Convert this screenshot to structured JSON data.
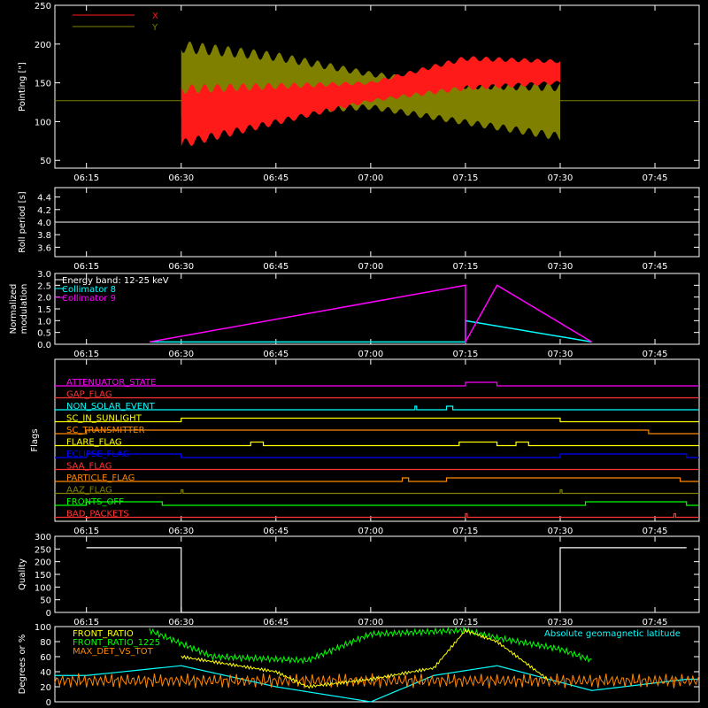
{
  "chart_data": [
    {
      "type": "area",
      "ylabel": "Pointing [\"]",
      "ylim": [
        40,
        250
      ],
      "yticks": [
        50,
        100,
        150,
        200,
        250
      ],
      "x_ticks": [
        "06:15",
        "06:30",
        "06:45",
        "07:00",
        "07:15",
        "07:30",
        "07:45"
      ],
      "baseline": 127,
      "legend": [
        {
          "name": "X",
          "color": "#ff1a1a"
        },
        {
          "name": "Y",
          "color": "#808000"
        }
      ],
      "series": [
        {
          "name": "X",
          "color": "#ff1a1a",
          "x": [
            "06:30",
            "06:45",
            "07:00",
            "07:15",
            "07:30"
          ],
          "low": [
            65,
            95,
            125,
            140,
            148
          ],
          "high": [
            148,
            150,
            152,
            185,
            180
          ]
        },
        {
          "name": "Y",
          "color": "#808000",
          "x": [
            "06:30",
            "06:45",
            "07:00",
            "07:15",
            "07:30"
          ],
          "low": [
            95,
            108,
            115,
            95,
            75
          ],
          "high": [
            205,
            190,
            165,
            150,
            150
          ]
        }
      ]
    },
    {
      "type": "line",
      "ylabel": "Roll period [s]",
      "ylim": [
        3.45,
        4.55
      ],
      "yticks": [
        "3.6",
        "3.8",
        "4.0",
        "4.2",
        "4.4"
      ],
      "x_ticks": [
        "06:15",
        "06:30",
        "06:45",
        "07:00",
        "07:15",
        "07:30",
        "07:45"
      ],
      "series": [
        {
          "name": "",
          "color": "#ffffff",
          "value": 4.0
        }
      ]
    },
    {
      "type": "line",
      "ylabel": "Normalized modulation",
      "ylim": [
        0,
        3.0
      ],
      "yticks": [
        "0.0",
        "0.5",
        "1.0",
        "1.5",
        "2.0",
        "2.5",
        "3.0"
      ],
      "x_ticks": [
        "06:15",
        "06:30",
        "06:45",
        "07:00",
        "07:15",
        "07:30",
        "07:45"
      ],
      "legend": [
        {
          "name": "Energy band: 12-25 keV",
          "color": "#ffffff"
        },
        {
          "name": "Collimator 8",
          "color": "#00ffff"
        },
        {
          "name": "Collimator 9",
          "color": "#ff00ff"
        }
      ],
      "series": [
        {
          "name": "Collimator 8",
          "color": "#00ffff",
          "x": [
            "06:25",
            "07:15",
            "07:15",
            "07:35"
          ],
          "y": [
            0.1,
            0.1,
            1.0,
            0.1
          ]
        },
        {
          "name": "Collimator 9",
          "color": "#ff00ff",
          "x": [
            "06:25",
            "07:15",
            "07:15",
            "07:20",
            "07:35"
          ],
          "y": [
            0.1,
            2.5,
            0.1,
            2.5,
            0.1
          ]
        }
      ]
    },
    {
      "type": "table",
      "ylabel": "Flags",
      "x_ticks": [
        "06:15",
        "06:30",
        "06:45",
        "07:00",
        "07:15",
        "07:30",
        "07:45"
      ],
      "flags": [
        {
          "name": "ATTENUATOR_STATE",
          "color": "#ff00ff",
          "on": [
            [
              "07:15",
              "07:20"
            ]
          ]
        },
        {
          "name": "GAP_FLAG",
          "color": "#ff3333",
          "on": []
        },
        {
          "name": "NON_SOLAR_EVENT",
          "color": "#00ffff",
          "on": [
            [
              "07:07",
              "07:07"
            ],
            [
              "07:12",
              "07:13"
            ]
          ]
        },
        {
          "name": "SC_IN_SUNLIGHT",
          "color": "#ffff00",
          "on": [
            [
              "06:30",
              "07:30"
            ]
          ]
        },
        {
          "name": "SC_TRANSMITTER",
          "color": "#ff8800",
          "on": [
            [
              "06:15",
              "07:44"
            ]
          ]
        },
        {
          "name": "FLARE_FLAG",
          "color": "#ffff00",
          "on": [
            [
              "06:41",
              "06:43"
            ],
            [
              "07:14",
              "07:20"
            ],
            [
              "07:23",
              "07:25"
            ]
          ]
        },
        {
          "name": "ECLIPSE_FLAG",
          "color": "#0000ff",
          "on": [
            [
              "06:15",
              "06:30"
            ],
            [
              "07:30",
              "07:50"
            ]
          ]
        },
        {
          "name": "SAA_FLAG",
          "color": "#ff3333",
          "on": []
        },
        {
          "name": "PARTICLE_FLAG",
          "color": "#ff8800",
          "on": [
            [
              "07:05",
              "07:06"
            ],
            [
              "07:12",
              "07:49"
            ]
          ]
        },
        {
          "name": "AAZ_FLAG",
          "color": "#808000",
          "on": [
            [
              "06:30",
              "06:30"
            ],
            [
              "07:30",
              "07:30"
            ]
          ]
        },
        {
          "name": "FRONTS_OFF",
          "color": "#00ff00",
          "on": [
            [
              "06:15",
              "06:27"
            ],
            [
              "07:34",
              "07:50"
            ]
          ]
        },
        {
          "name": "BAD_PACKETS",
          "color": "#ff3333",
          "on": [
            [
              "07:15",
              "07:15"
            ],
            [
              "07:48",
              "07:48"
            ]
          ]
        }
      ]
    },
    {
      "type": "line",
      "ylabel": "Quality",
      "ylim": [
        0,
        300
      ],
      "yticks": [
        "0",
        "50",
        "100",
        "150",
        "200",
        "250",
        "300"
      ],
      "x_ticks": [
        "06:15",
        "06:30",
        "06:45",
        "07:00",
        "07:15",
        "07:30",
        "07:45"
      ],
      "series": [
        {
          "name": "",
          "color": "#ffffff",
          "x": [
            "06:15",
            "06:30",
            "06:30",
            "07:30",
            "07:30",
            "07:50"
          ],
          "y": [
            255,
            255,
            0,
            0,
            255,
            255
          ]
        }
      ]
    },
    {
      "type": "line",
      "ylabel": "Degrees or %",
      "ylim": [
        0,
        100
      ],
      "yticks": [
        "0",
        "20",
        "40",
        "60",
        "80",
        "100"
      ],
      "legend": [
        {
          "name": "FRONT_RATIO",
          "color": "#ffff00"
        },
        {
          "name": "FRONT_RATIO_1225",
          "color": "#00ff00"
        },
        {
          "name": "MAX_DET_VS_TOT",
          "color": "#ff8800"
        },
        {
          "name": "Absolute geomagnetic latitude",
          "color": "#00ffff"
        }
      ],
      "series": [
        {
          "name": "FRONT_RATIO",
          "color": "#ffff00",
          "x": [
            "06:30",
            "06:45",
            "06:50",
            "07:00",
            "07:10",
            "07:15",
            "07:20",
            "07:28"
          ],
          "y": [
            60,
            40,
            20,
            30,
            45,
            95,
            80,
            30
          ]
        },
        {
          "name": "FRONT_RATIO_1225",
          "color": "#00ff00",
          "x": [
            "06:25",
            "06:35",
            "06:50",
            "07:00",
            "07:15",
            "07:20",
            "07:30",
            "07:35"
          ],
          "y": [
            95,
            60,
            55,
            90,
            95,
            85,
            70,
            55
          ]
        },
        {
          "name": "MAX_DET_VS_TOT",
          "color": "#ff8800",
          "x": [
            "06:15",
            "07:50"
          ],
          "y": [
            30,
            30
          ]
        },
        {
          "name": "Absolute geomagnetic latitude",
          "color": "#00ffff",
          "x": [
            "06:15",
            "06:30",
            "06:45",
            "07:00",
            "07:10",
            "07:20",
            "07:35",
            "07:50"
          ],
          "y": [
            35,
            48,
            20,
            0,
            35,
            48,
            15,
            30
          ]
        }
      ]
    }
  ]
}
